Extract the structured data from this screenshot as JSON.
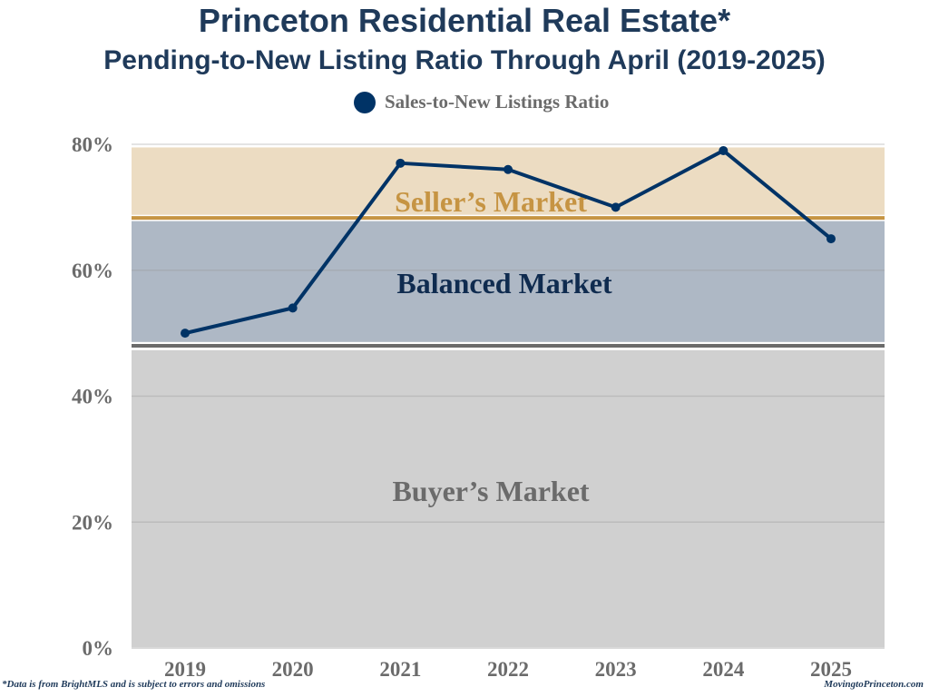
{
  "title": "Princeton Residential Real Estate*",
  "subtitle": "Pending-to-New Listing Ratio Through April (2019-2025)",
  "footer": {
    "note": "*Data is from BrightMLS and is subject to errors and omissions",
    "site": "MovingtoPrinceton.com"
  },
  "chart_data": {
    "type": "line",
    "title": "Princeton Residential Real Estate* Pending-to-New Listing Ratio Through April (2019-2025)",
    "legend": {
      "label": "Sales-to-New Listings Ratio",
      "placement": "top-center"
    },
    "categories": [
      "2019",
      "2020",
      "2021",
      "2022",
      "2023",
      "2024",
      "2025"
    ],
    "series": [
      {
        "name": "Sales-to-New Listings Ratio",
        "values": [
          50,
          54,
          77,
          76,
          70,
          79,
          65
        ],
        "color": "#003366"
      }
    ],
    "ylim": [
      0,
      80
    ],
    "yticks": [
      0,
      20,
      40,
      60,
      80
    ],
    "ytick_labels": [
      "0%",
      "20%",
      "40%",
      "60%",
      "80%"
    ],
    "grid": true,
    "bands": [
      {
        "label": "Buyer's Market",
        "range": [
          0,
          47.3
        ],
        "color": "#d0d0d0",
        "text_color": "#6b6b6b"
      },
      {
        "label": "Balanced Market",
        "range": [
          48.6,
          67.8
        ],
        "color": "#aeb8c5",
        "text_color": "#0f2b4f"
      },
      {
        "label": "Seller's Market",
        "range": [
          68.8,
          79.5
        ],
        "color": "#ecdcc2",
        "text_color": "#c69443"
      }
    ],
    "threshold_lines": [
      {
        "value": 68.3,
        "color": "#c69443"
      },
      {
        "value": 48.0,
        "color": "#6b6b6b"
      }
    ]
  }
}
